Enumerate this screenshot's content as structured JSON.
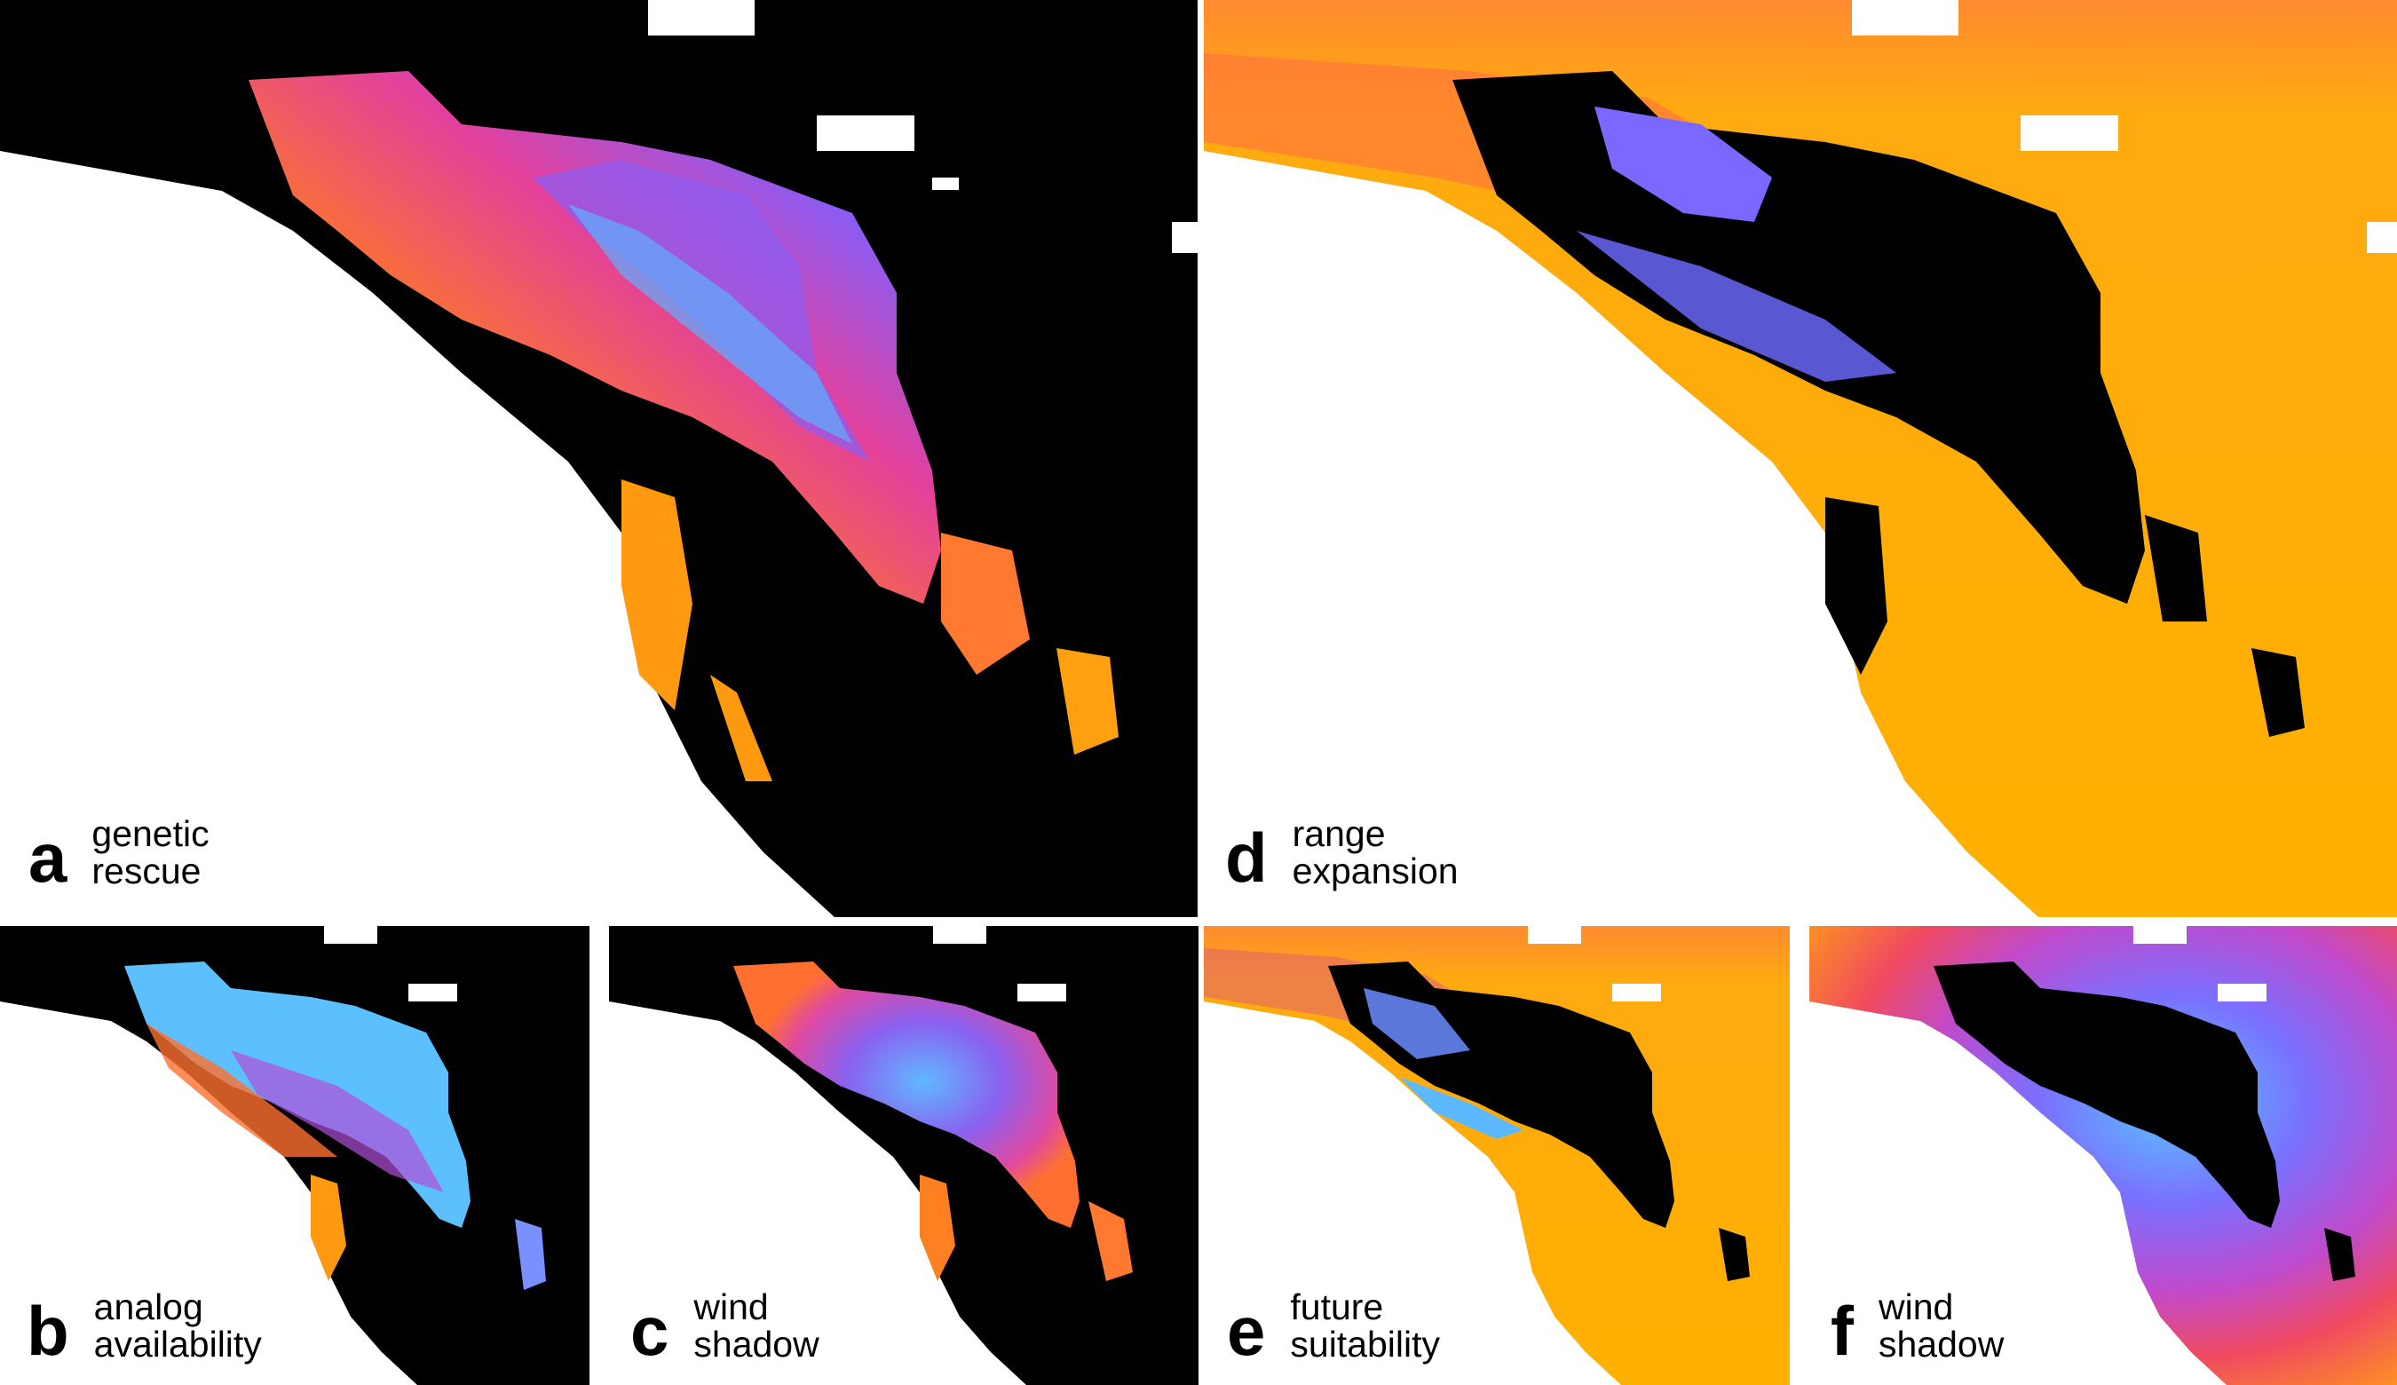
{
  "panels": [
    {
      "id": "a",
      "letter": "a",
      "caption_lines": [
        "genetic",
        "rescue"
      ]
    },
    {
      "id": "b",
      "letter": "b",
      "caption_lines": [
        "analog",
        "availability"
      ]
    },
    {
      "id": "c",
      "letter": "c",
      "caption_lines": [
        "wind",
        "shadow"
      ]
    },
    {
      "id": "d",
      "letter": "d",
      "caption_lines": [
        "range",
        "expansion"
      ]
    },
    {
      "id": "e",
      "letter": "e",
      "caption_lines": [
        "future",
        "suitability"
      ]
    },
    {
      "id": "f",
      "letter": "f",
      "caption_lines": [
        "wind",
        "shadow"
      ]
    }
  ],
  "colors": {
    "background_land": "#000000",
    "water_nodata": "#ffffff",
    "ramp": [
      "#ffb000",
      "#ff8a1a",
      "#ff5a3c",
      "#e040a0",
      "#a050f0",
      "#7070ff",
      "#58b8ff"
    ],
    "fill_d_e": "#ffb000"
  }
}
